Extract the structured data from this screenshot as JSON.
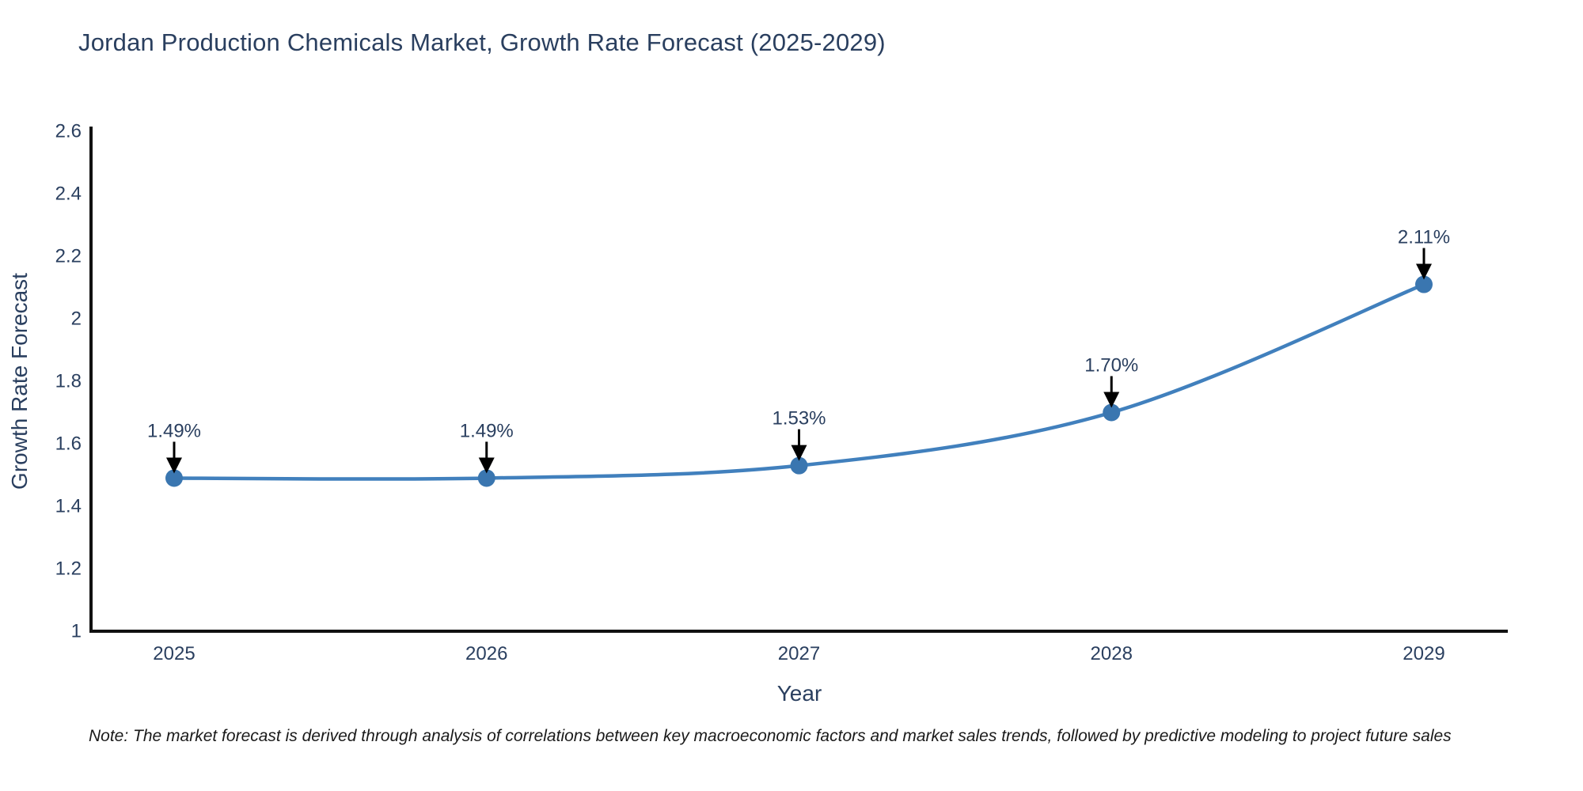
{
  "title": "Jordan Production Chemicals Market, Growth Rate Forecast (2025-2029)",
  "note": "Note: The market forecast is derived through analysis of correlations between key macroeconomic factors and market sales trends, followed by predictive modeling to project future sales",
  "colors": {
    "text": "#2a3f5f",
    "axis_line": "#111111",
    "series_line": "#4180bd",
    "marker": "#3a76b0",
    "arrow": "#000000",
    "note_text": "#1a1a1a",
    "background": "#ffffff"
  },
  "chart_data": {
    "type": "line",
    "title": "Jordan Production Chemicals Market, Growth Rate Forecast (2025-2029)",
    "x": [
      2025,
      2026,
      2027,
      2028,
      2029
    ],
    "x_tick_labels": [
      "2025",
      "2026",
      "2027",
      "2028",
      "2029"
    ],
    "series": [
      {
        "name": "Growth Rate Forecast",
        "values": [
          1.49,
          1.49,
          1.53,
          1.7,
          2.11
        ]
      }
    ],
    "point_labels": [
      "1.49%",
      "1.49%",
      "1.53%",
      "1.70%",
      "2.11%"
    ],
    "xlabel": "Year",
    "ylabel": "Growth Rate Forecast",
    "ylim": [
      1,
      2.6
    ],
    "yticks": [
      1,
      1.2,
      1.4,
      1.6,
      1.8,
      2,
      2.2,
      2.4,
      2.6
    ],
    "ytick_labels": [
      "1",
      "1.2",
      "1.4",
      "1.6",
      "1.8",
      "2",
      "2.2",
      "2.4",
      "2.6"
    ],
    "grid": false,
    "legend": "none",
    "line_shape": "spline",
    "marker": "circle",
    "annotation_style": "label-with-down-arrow"
  }
}
